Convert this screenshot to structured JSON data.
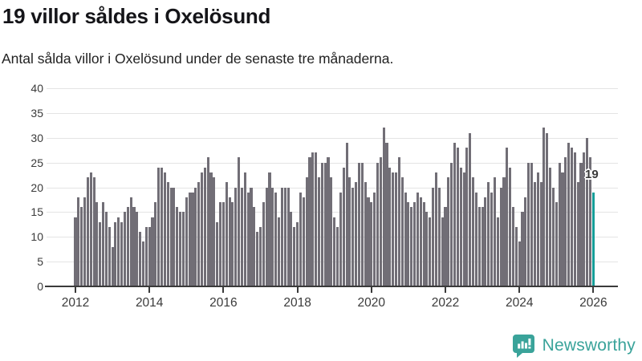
{
  "header": {
    "title": "19 villor såldes i Oxelösund",
    "subtitle": "Antal sålda villor i Oxelösund under de senaste tre månaderna."
  },
  "chart_data": {
    "type": "bar",
    "title": "19 villor såldes i Oxelösund",
    "subtitle": "Antal sålda villor i Oxelösund under de senaste tre månaderna.",
    "x_unit": "month",
    "x_start": "2012-01",
    "x_end": "2026-01",
    "xlabel": "",
    "ylabel": "",
    "ylim": [
      0,
      40
    ],
    "yticks": [
      0,
      5,
      10,
      15,
      20,
      25,
      30,
      35,
      40
    ],
    "xticks": [
      2012,
      2014,
      2016,
      2018,
      2020,
      2022,
      2024,
      2026
    ],
    "grid": "horizontal",
    "legend": "none",
    "bar_color": "#716e76",
    "highlight_color": "#169e99",
    "highlight_label": "19",
    "values": [
      14,
      18,
      16,
      18,
      22,
      23,
      22,
      17,
      13,
      17,
      15,
      12,
      8,
      13,
      14,
      13,
      15,
      16,
      18,
      16,
      15,
      11,
      9,
      12,
      12,
      14,
      17,
      24,
      24,
      23,
      21,
      20,
      20,
      16,
      15,
      15,
      18,
      19,
      19,
      20,
      21,
      23,
      24,
      26,
      23,
      22,
      13,
      17,
      17,
      21,
      18,
      17,
      20,
      26,
      20,
      23,
      19,
      20,
      16,
      11,
      12,
      17,
      20,
      23,
      20,
      19,
      14,
      20,
      20,
      20,
      15,
      12,
      13,
      19,
      18,
      22,
      26,
      27,
      27,
      22,
      25,
      25,
      26,
      22,
      14,
      12,
      19,
      24,
      29,
      22,
      20,
      21,
      25,
      25,
      21,
      18,
      17,
      19,
      25,
      26,
      32,
      29,
      24,
      23,
      23,
      26,
      22,
      19,
      17,
      16,
      17,
      19,
      18,
      17,
      15,
      14,
      20,
      23,
      20,
      14,
      16,
      22,
      25,
      29,
      28,
      24,
      23,
      28,
      31,
      22,
      19,
      16,
      16,
      18,
      21,
      19,
      22,
      14,
      20,
      22,
      28,
      24,
      16,
      12,
      9,
      15,
      18,
      25,
      25,
      21,
      23,
      21,
      32,
      31,
      24,
      20,
      17,
      25,
      23,
      26,
      29,
      28,
      27,
      21,
      25,
      27,
      30,
      26,
      19
    ]
  },
  "annotation": {
    "last_value_label": "19"
  },
  "footer": {
    "brand": "Newsworthy",
    "brand_color": "#3aa39a"
  }
}
